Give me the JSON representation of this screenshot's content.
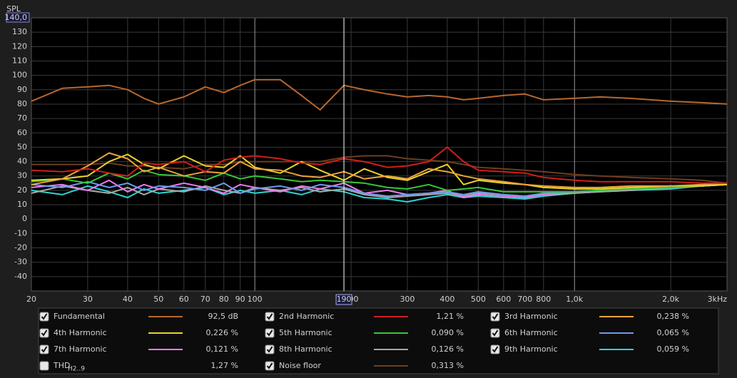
{
  "chart_data": {
    "type": "line",
    "y_label": "SPL",
    "xscale": "log",
    "xlim": [
      20,
      3000
    ],
    "ylim": [
      -50,
      140
    ],
    "xticks": [
      20,
      30,
      40,
      50,
      60,
      70,
      80,
      90,
      100,
      200,
      300,
      400,
      500,
      600,
      700,
      800,
      {
        "value": 1000,
        "label": "1,0k"
      },
      {
        "value": 2000,
        "label": "2,0k"
      },
      {
        "value": 3000,
        "label": "3kHz"
      }
    ],
    "yticks": [
      {
        "value": 140,
        "label": "140,0"
      },
      130,
      120,
      110,
      100,
      90,
      80,
      70,
      60,
      50,
      40,
      30,
      20,
      10,
      0,
      -10,
      -20,
      -30,
      -40
    ],
    "grid": true,
    "cursor": 190,
    "x": [
      20,
      25,
      30,
      35,
      40,
      45,
      50,
      60,
      70,
      80,
      90,
      100,
      120,
      140,
      160,
      190,
      220,
      260,
      300,
      350,
      400,
      450,
      500,
      600,
      700,
      800,
      1000,
      1200,
      1500,
      2000,
      2500,
      3000
    ],
    "series": [
      {
        "name": "Fundamental",
        "color": "#b8672e",
        "checked": true,
        "legend_value": "92,5 dB",
        "values": [
          82,
          91,
          92,
          93,
          90,
          84,
          80,
          85,
          92,
          88,
          93,
          97,
          97,
          86,
          76,
          93,
          90,
          87,
          85,
          86,
          85,
          83,
          84,
          86,
          87,
          83,
          84,
          85,
          84,
          82,
          81,
          80
        ]
      },
      {
        "name": "2nd Harmonic",
        "color": "#d01e1e",
        "checked": true,
        "legend_value": "1,21 %",
        "values": [
          34,
          33,
          35,
          32,
          30,
          39,
          38,
          40,
          33,
          41,
          43,
          44,
          42,
          39,
          38,
          42,
          40,
          36,
          37,
          40,
          50,
          40,
          34,
          33,
          32,
          29,
          27,
          26,
          26,
          26,
          25,
          25
        ]
      },
      {
        "name": "3rd Harmonic",
        "color": "#eca43c",
        "checked": true,
        "legend_value": "0,238 %",
        "values": [
          24,
          28,
          37,
          46,
          42,
          33,
          36,
          30,
          33,
          32,
          40,
          35,
          34,
          30,
          29,
          33,
          28,
          30,
          28,
          35,
          33,
          30,
          28,
          26,
          24,
          23,
          22,
          22,
          23,
          23,
          24,
          25
        ]
      },
      {
        "name": "4th Harmonic",
        "color": "#e8d42c",
        "checked": true,
        "legend_value": "0,226 %",
        "values": [
          27,
          28,
          30,
          40,
          45,
          38,
          35,
          44,
          37,
          36,
          44,
          36,
          32,
          40,
          34,
          27,
          35,
          29,
          27,
          33,
          38,
          24,
          27,
          25,
          24,
          22,
          21,
          21,
          22,
          23,
          23,
          24
        ]
      },
      {
        "name": "5th Harmonic",
        "color": "#36c836",
        "checked": true,
        "legend_value": "0,090 %",
        "values": [
          26,
          28,
          25,
          32,
          28,
          34,
          31,
          30,
          27,
          32,
          28,
          30,
          28,
          26,
          27,
          26,
          25,
          22,
          21,
          24,
          20,
          21,
          22,
          19,
          19,
          19,
          19,
          20,
          21,
          22,
          23,
          24
        ]
      },
      {
        "name": "6th Harmonic",
        "color": "#6c9cec",
        "checked": true,
        "legend_value": "0,065 %",
        "values": [
          24,
          22,
          26,
          22,
          25,
          20,
          23,
          22,
          20,
          25,
          18,
          21,
          23,
          20,
          24,
          22,
          18,
          16,
          17,
          18,
          19,
          17,
          19,
          17,
          16,
          18,
          19,
          20,
          21,
          22,
          23,
          24
        ]
      },
      {
        "name": "7th Harmonic",
        "color": "#ec7cec",
        "checked": true,
        "legend_value": "0,121 %",
        "values": [
          22,
          24,
          20,
          27,
          19,
          24,
          21,
          25,
          22,
          18,
          24,
          22,
          19,
          23,
          21,
          25,
          18,
          20,
          17,
          18,
          20,
          15,
          17,
          16,
          15,
          17,
          19,
          20,
          21,
          22,
          23,
          24
        ]
      },
      {
        "name": "8th Harmonic",
        "color": "#a8a8a8",
        "checked": true,
        "legend_value": "0,126 %",
        "values": [
          18,
          23,
          20,
          18,
          22,
          17,
          21,
          19,
          23,
          20,
          18,
          22,
          20,
          22,
          19,
          21,
          17,
          15,
          16,
          17,
          18,
          16,
          18,
          17,
          16,
          17,
          18,
          19,
          20,
          22,
          23,
          24
        ]
      },
      {
        "name": "9th Harmonic",
        "color": "#2cd4d4",
        "checked": true,
        "legend_value": "0,059 %",
        "values": [
          20,
          17,
          23,
          19,
          15,
          21,
          18,
          20,
          22,
          17,
          20,
          18,
          20,
          17,
          21,
          19,
          15,
          14,
          12,
          15,
          17,
          15,
          16,
          15,
          14,
          16,
          18,
          19,
          20,
          21,
          23,
          24
        ]
      },
      {
        "name": "Noise floor",
        "color": "#6e3e1e",
        "checked": true,
        "legend_value": "0,313 %",
        "values": [
          38,
          38,
          38,
          39,
          37,
          37,
          36,
          35,
          38,
          38,
          40,
          40,
          40,
          40,
          40,
          43,
          44,
          44,
          42,
          41,
          40,
          38,
          36,
          35,
          34,
          33,
          31,
          30,
          29,
          28,
          27,
          25
        ]
      }
    ],
    "thd": {
      "name": "THD",
      "subscript": "H2..9",
      "checked": false,
      "legend_value": "1,27 %"
    }
  }
}
